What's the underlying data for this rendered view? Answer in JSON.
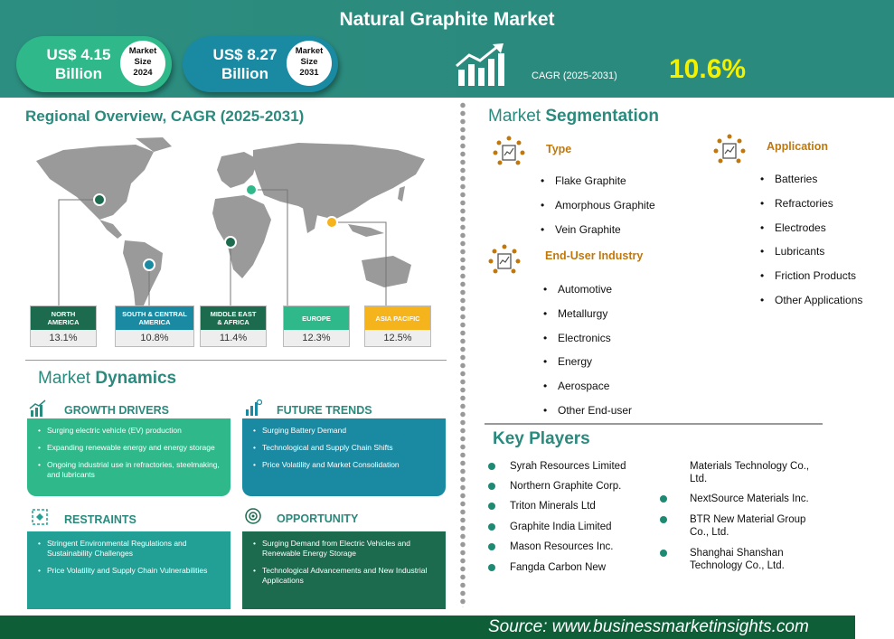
{
  "header": {
    "title": "Natural Graphite Market",
    "market_2024": {
      "amount_line1": "US$ 4.15",
      "amount_line2": "Billion",
      "badge_line1": "Market",
      "badge_line2": "Size",
      "badge_line3": "2024"
    },
    "market_2031": {
      "amount_line1": "US$ 8.27",
      "amount_line2": "Billion",
      "badge_line1": "Market",
      "badge_line2": "Size",
      "badge_line3": "2031"
    },
    "cagr_label": "CAGR (2025-2031)",
    "cagr_value": "10.6%"
  },
  "regional": {
    "heading": "Regional Overview, CAGR (2025-2031)",
    "regions": [
      {
        "label_line1": "NORTH",
        "label_line2": "AMERICA",
        "value": "13.1%",
        "color": "#1c6b4f"
      },
      {
        "label_line1": "SOUTH & CENTRAL",
        "label_line2": "AMERICA",
        "value": "10.8%",
        "color": "#1a8aa3"
      },
      {
        "label_line1": "MIDDLE EAST",
        "label_line2": "& AFRICA",
        "value": "11.4%",
        "color": "#1c6b4f"
      },
      {
        "label_line1": "EUROPE",
        "label_line2": "",
        "value": "12.3%",
        "color": "#2fb98a"
      },
      {
        "label_line1": "ASIA PACIFIC",
        "label_line2": "",
        "value": "12.5%",
        "color": "#f5b31c"
      }
    ]
  },
  "dynamics": {
    "heading_light": "Market ",
    "heading_bold": "Dynamics",
    "growth_drivers": {
      "title": "GROWTH DRIVERS",
      "color": "#2fb98a",
      "items": [
        "Surging electric vehicle (EV) production",
        "Expanding renewable energy and energy storage",
        "Ongoing industrial use in refractories, steelmaking, and lubricants"
      ]
    },
    "future_trends": {
      "title": "FUTURE TRENDS",
      "color": "#1a8aa3",
      "items": [
        "Surging Battery Demand",
        "Technological and Supply Chain Shifts",
        "Price Volatility and Market Consolidation"
      ]
    },
    "restraints": {
      "title": "RESTRAINTS",
      "color": "#23a095",
      "items": [
        "Stringent Environmental Regulations and Sustainability Challenges",
        "Price Volatility and Supply Chain Vulnerabilities"
      ]
    },
    "opportunity": {
      "title": "OPPORTUNITY",
      "color": "#1c6b4f",
      "items": [
        "Surging Demand from Electric Vehicles and Renewable Energy Storage",
        "Technological Advancements and New Industrial Applications"
      ]
    }
  },
  "segmentation": {
    "heading_light": "Market ",
    "heading_bold": "Segmentation",
    "type": {
      "title": "Type",
      "items": [
        "Flake Graphite",
        "Amorphous Graphite",
        "Vein Graphite"
      ]
    },
    "application": {
      "title": "Application",
      "items": [
        "Batteries",
        "Refractories",
        "Electrodes",
        "Lubricants",
        "Friction Products",
        "Other Applications"
      ]
    },
    "end_user": {
      "title": "End-User Industry",
      "items": [
        "Automotive",
        "Metallurgy",
        "Electronics",
        "Energy",
        "Aerospace",
        "Other End-user"
      ]
    }
  },
  "key_players": {
    "heading": "Key Players",
    "left": [
      "Syrah Resources Limited",
      "Northern Graphite Corp.",
      "Triton Minerals Ltd",
      "Graphite India Limited",
      "Mason Resources Inc.",
      "Fangda Carbon New"
    ],
    "right": [
      {
        "line1": "Materials Technology Co.,",
        "line2": "Ltd.",
        "dot": false
      },
      {
        "line1": "NextSource Materials Inc.",
        "line2": "",
        "dot": true
      },
      {
        "line1": "BTR New Material Group",
        "line2": "Co., Ltd.",
        "dot": true
      },
      {
        "line1": "Shanghai Shanshan",
        "line2": "Technology Co., Ltd.",
        "dot": true
      }
    ]
  },
  "footer": {
    "source": "Source:  www.businessmarketinsights.com"
  }
}
